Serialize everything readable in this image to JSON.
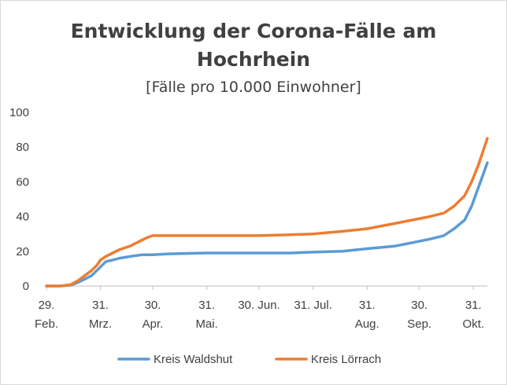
{
  "chart_data": {
    "type": "line",
    "title_line1": "Entwicklung der Corona-Fälle am",
    "title_line2": "Hochrhein",
    "subtitle": "[Fälle pro 10.000  Einwohner]",
    "xlabel": "",
    "ylabel": "",
    "ylim": [
      0,
      100
    ],
    "yticks": [
      "0",
      "20",
      "40",
      "60",
      "80",
      "100"
    ],
    "grid": false,
    "legend_position": "bottom",
    "x_ticks": [
      {
        "day": 0,
        "line1": "29.",
        "line2": "Feb."
      },
      {
        "day": 31,
        "line1": "31.",
        "line2": "Mrz."
      },
      {
        "day": 61,
        "line1": "30.",
        "line2": "Apr."
      },
      {
        "day": 92,
        "line1": "31.",
        "line2": "Mai."
      },
      {
        "day": 122,
        "line1": "30. Jun.",
        "line2": ""
      },
      {
        "day": 153,
        "line1": "31. Jul.",
        "line2": ""
      },
      {
        "day": 184,
        "line1": "31.",
        "line2": "Aug."
      },
      {
        "day": 214,
        "line1": "30.",
        "line2": "Sep."
      },
      {
        "day": 245,
        "line1": "31.",
        "line2": "Okt."
      }
    ],
    "x_range": [
      0,
      253
    ],
    "series": [
      {
        "name": "Kreis Waldshut",
        "color": "#5b9bd5",
        "points": [
          [
            0,
            0
          ],
          [
            8,
            0
          ],
          [
            14,
            0.5
          ],
          [
            18,
            2
          ],
          [
            22,
            4
          ],
          [
            26,
            6
          ],
          [
            28,
            8
          ],
          [
            31,
            11
          ],
          [
            34,
            14
          ],
          [
            38,
            15
          ],
          [
            42,
            16
          ],
          [
            48,
            17
          ],
          [
            55,
            18
          ],
          [
            61,
            18
          ],
          [
            70,
            18.5
          ],
          [
            92,
            19
          ],
          [
            122,
            19
          ],
          [
            140,
            19
          ],
          [
            153,
            19.5
          ],
          [
            170,
            20
          ],
          [
            184,
            21.5
          ],
          [
            200,
            23
          ],
          [
            210,
            25
          ],
          [
            220,
            27
          ],
          [
            228,
            29
          ],
          [
            234,
            33
          ],
          [
            240,
            38
          ],
          [
            244,
            46
          ],
          [
            248,
            57
          ],
          [
            253,
            71
          ]
        ]
      },
      {
        "name": "Kreis Lörrach",
        "color": "#ed7d31",
        "points": [
          [
            0,
            0
          ],
          [
            8,
            0
          ],
          [
            14,
            0.8
          ],
          [
            18,
            3
          ],
          [
            22,
            6
          ],
          [
            26,
            9
          ],
          [
            29,
            12
          ],
          [
            31,
            15
          ],
          [
            34,
            17
          ],
          [
            38,
            19
          ],
          [
            42,
            21
          ],
          [
            48,
            23
          ],
          [
            54,
            26
          ],
          [
            58,
            28
          ],
          [
            61,
            29
          ],
          [
            92,
            29
          ],
          [
            122,
            29
          ],
          [
            140,
            29.5
          ],
          [
            153,
            30
          ],
          [
            170,
            31.5
          ],
          [
            184,
            33
          ],
          [
            200,
            36
          ],
          [
            210,
            38
          ],
          [
            220,
            40
          ],
          [
            228,
            42
          ],
          [
            234,
            46
          ],
          [
            240,
            52
          ],
          [
            244,
            60
          ],
          [
            248,
            70
          ],
          [
            253,
            85
          ]
        ]
      }
    ]
  }
}
